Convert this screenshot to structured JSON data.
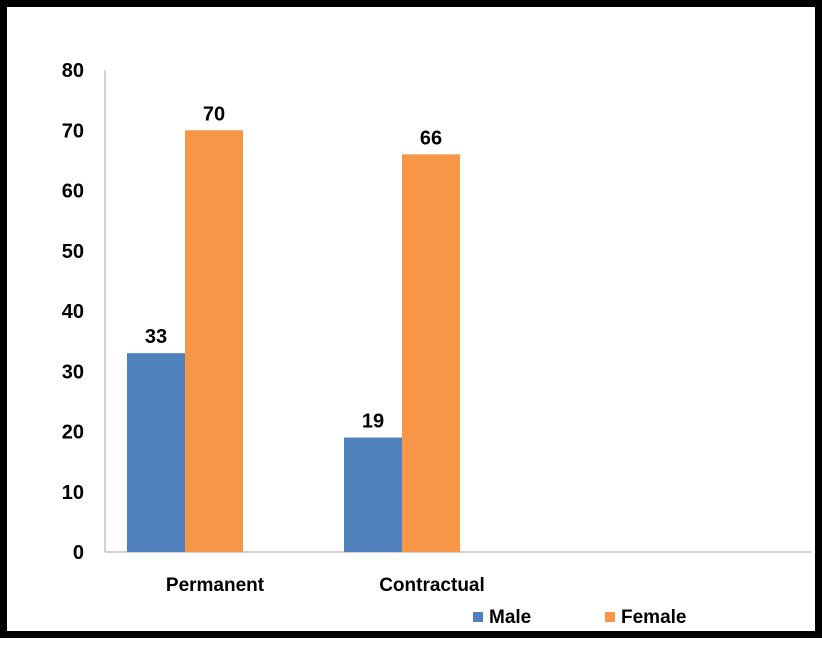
{
  "chart_data": {
    "type": "bar",
    "categories": [
      "Permanent",
      "Contractual"
    ],
    "series": [
      {
        "name": "Male",
        "values": [
          33,
          19
        ],
        "color": "#4F81BD"
      },
      {
        "name": "Female",
        "values": [
          70,
          66
        ],
        "color": "#F79646"
      }
    ],
    "title": "",
    "xlabel": "",
    "ylabel": "",
    "ylim": [
      0,
      80
    ],
    "yticks": [
      0,
      10,
      20,
      30,
      40,
      50,
      60,
      70,
      80
    ],
    "grid": false,
    "legend": "bottom",
    "axis_color": "#A6A6A6"
  }
}
